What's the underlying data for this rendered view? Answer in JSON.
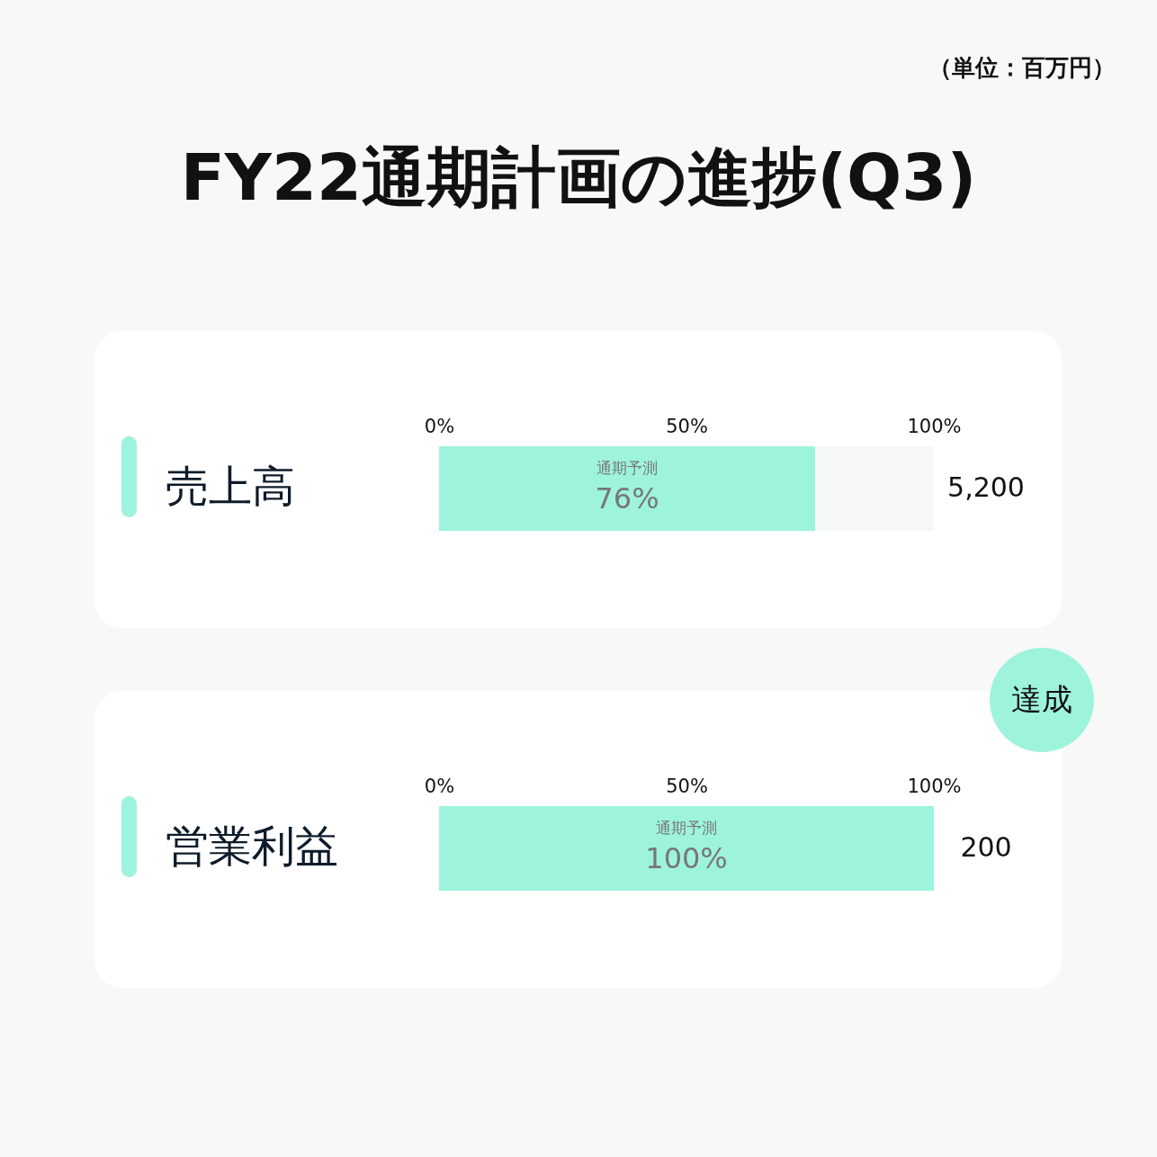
{
  "chart_data": [
    {
      "type": "bar",
      "orientation": "horizontal",
      "title": "FY22通期計画の進捗(Q3)",
      "categories": [
        "売上高"
      ],
      "values": [
        76
      ],
      "color": "#9ef3dc",
      "value_labels": [
        "76%"
      ],
      "xlim": [
        0,
        100
      ],
      "xticks": [
        {
          "value": 0,
          "label": "0%"
        },
        {
          "value": 50,
          "label": "50%"
        },
        {
          "value": 100,
          "label": "100%"
        }
      ],
      "annotations": [
        "（単位：百万円）",
        "通期予測",
        "5,200"
      ]
    },
    {
      "type": "bar",
      "orientation": "horizontal",
      "categories": [
        "営業利益"
      ],
      "values": [
        100
      ],
      "color": "#9ef3dc",
      "value_labels": [
        "100%"
      ],
      "xlim": [
        0,
        100
      ],
      "xticks": [
        {
          "value": 0,
          "label": "0%"
        },
        {
          "value": 50,
          "label": "50%"
        },
        {
          "value": 100,
          "label": "100%"
        }
      ],
      "annotations": [
        "達成",
        "通期予測",
        "200"
      ]
    }
  ]
}
